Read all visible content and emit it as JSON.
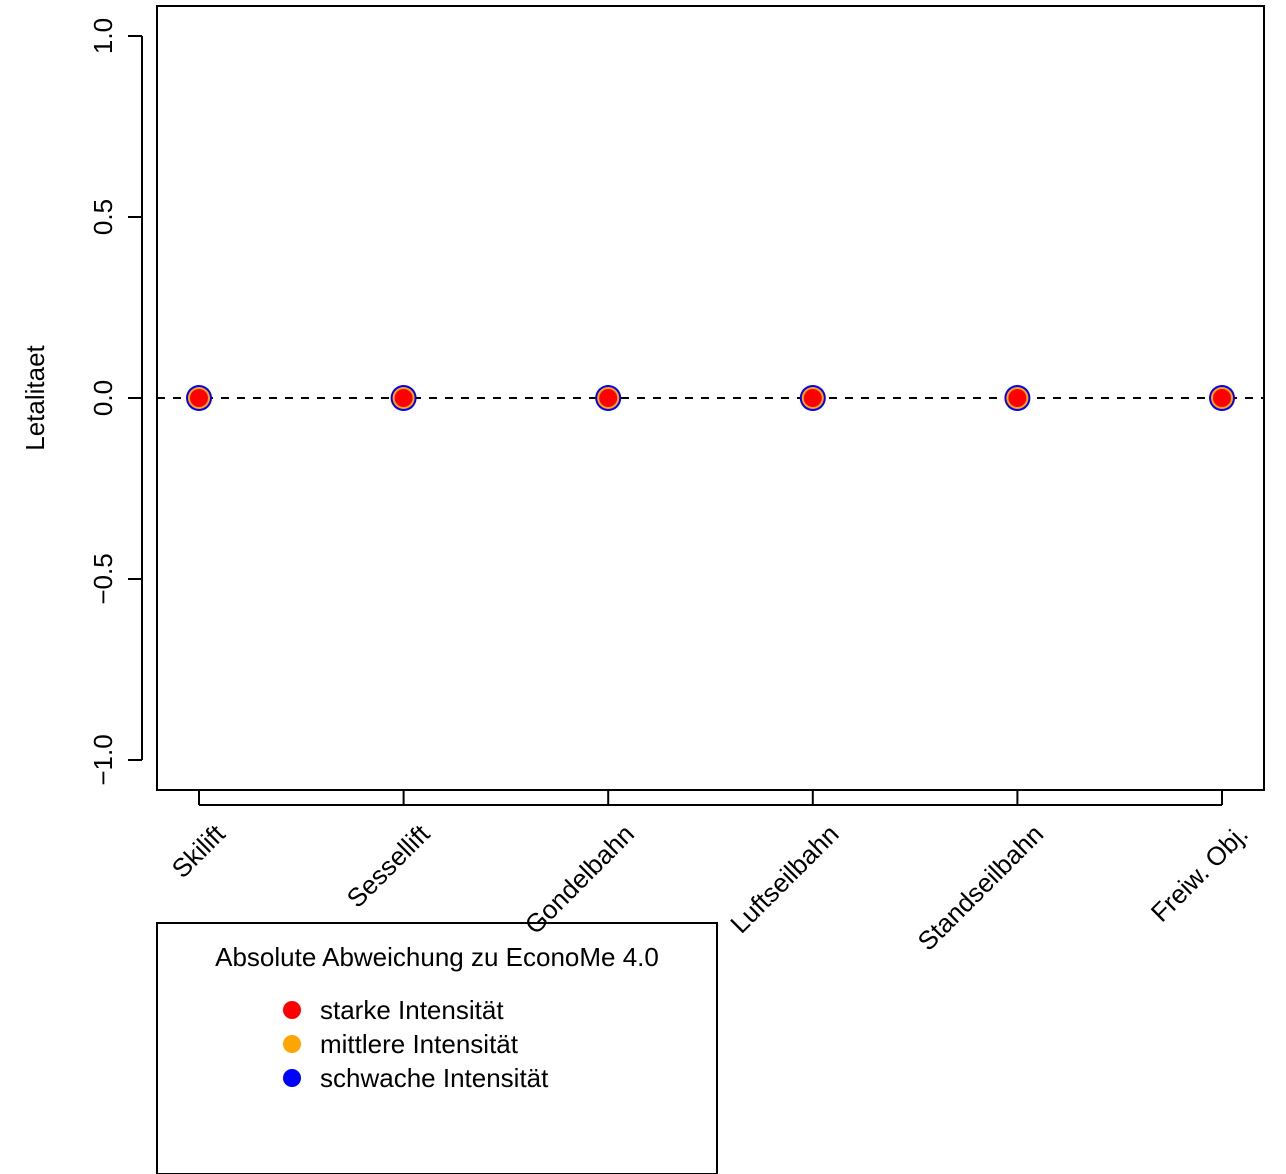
{
  "chart_data": {
    "type": "scatter",
    "title": "",
    "xlabel": "",
    "ylabel": "Letalitaet",
    "categories": [
      "Skilift",
      "Sessellift",
      "Gondelbahn",
      "Luftseilbahn",
      "Standseilbahn",
      "Freiw. Obj."
    ],
    "ylim": [
      -1.1,
      1.1
    ],
    "yticks": [
      -1.0,
      -0.5,
      0.0,
      0.5,
      1.0
    ],
    "ytick_labels": [
      "−1.0",
      "−0.5",
      "0.0",
      "0.5",
      "1.0"
    ],
    "reference_line": {
      "y": 0.0,
      "style": "dashed",
      "color": "#000000"
    },
    "series": [
      {
        "name": "starke Intensität",
        "color": "#ff0000",
        "values": [
          0,
          0,
          0,
          0,
          0,
          0
        ]
      },
      {
        "name": "mittlere Intensität",
        "color": "#ffa500",
        "values": [
          0,
          0,
          0,
          0,
          0,
          0
        ]
      },
      {
        "name": "schwache Intensität",
        "color": "#0000ff",
        "values": [
          0,
          0,
          0,
          0,
          0,
          0
        ]
      }
    ],
    "legend": {
      "title": "Absolute Abweichung zu EconoMe 4.0",
      "placement": "bottom-left",
      "items": [
        {
          "label": "starke Intensität",
          "color": "#ff0000"
        },
        {
          "label": "mittlere Intensität",
          "color": "#ffa500"
        },
        {
          "label": "schwache Intensität",
          "color": "#0000ff"
        }
      ]
    },
    "grid": false
  }
}
